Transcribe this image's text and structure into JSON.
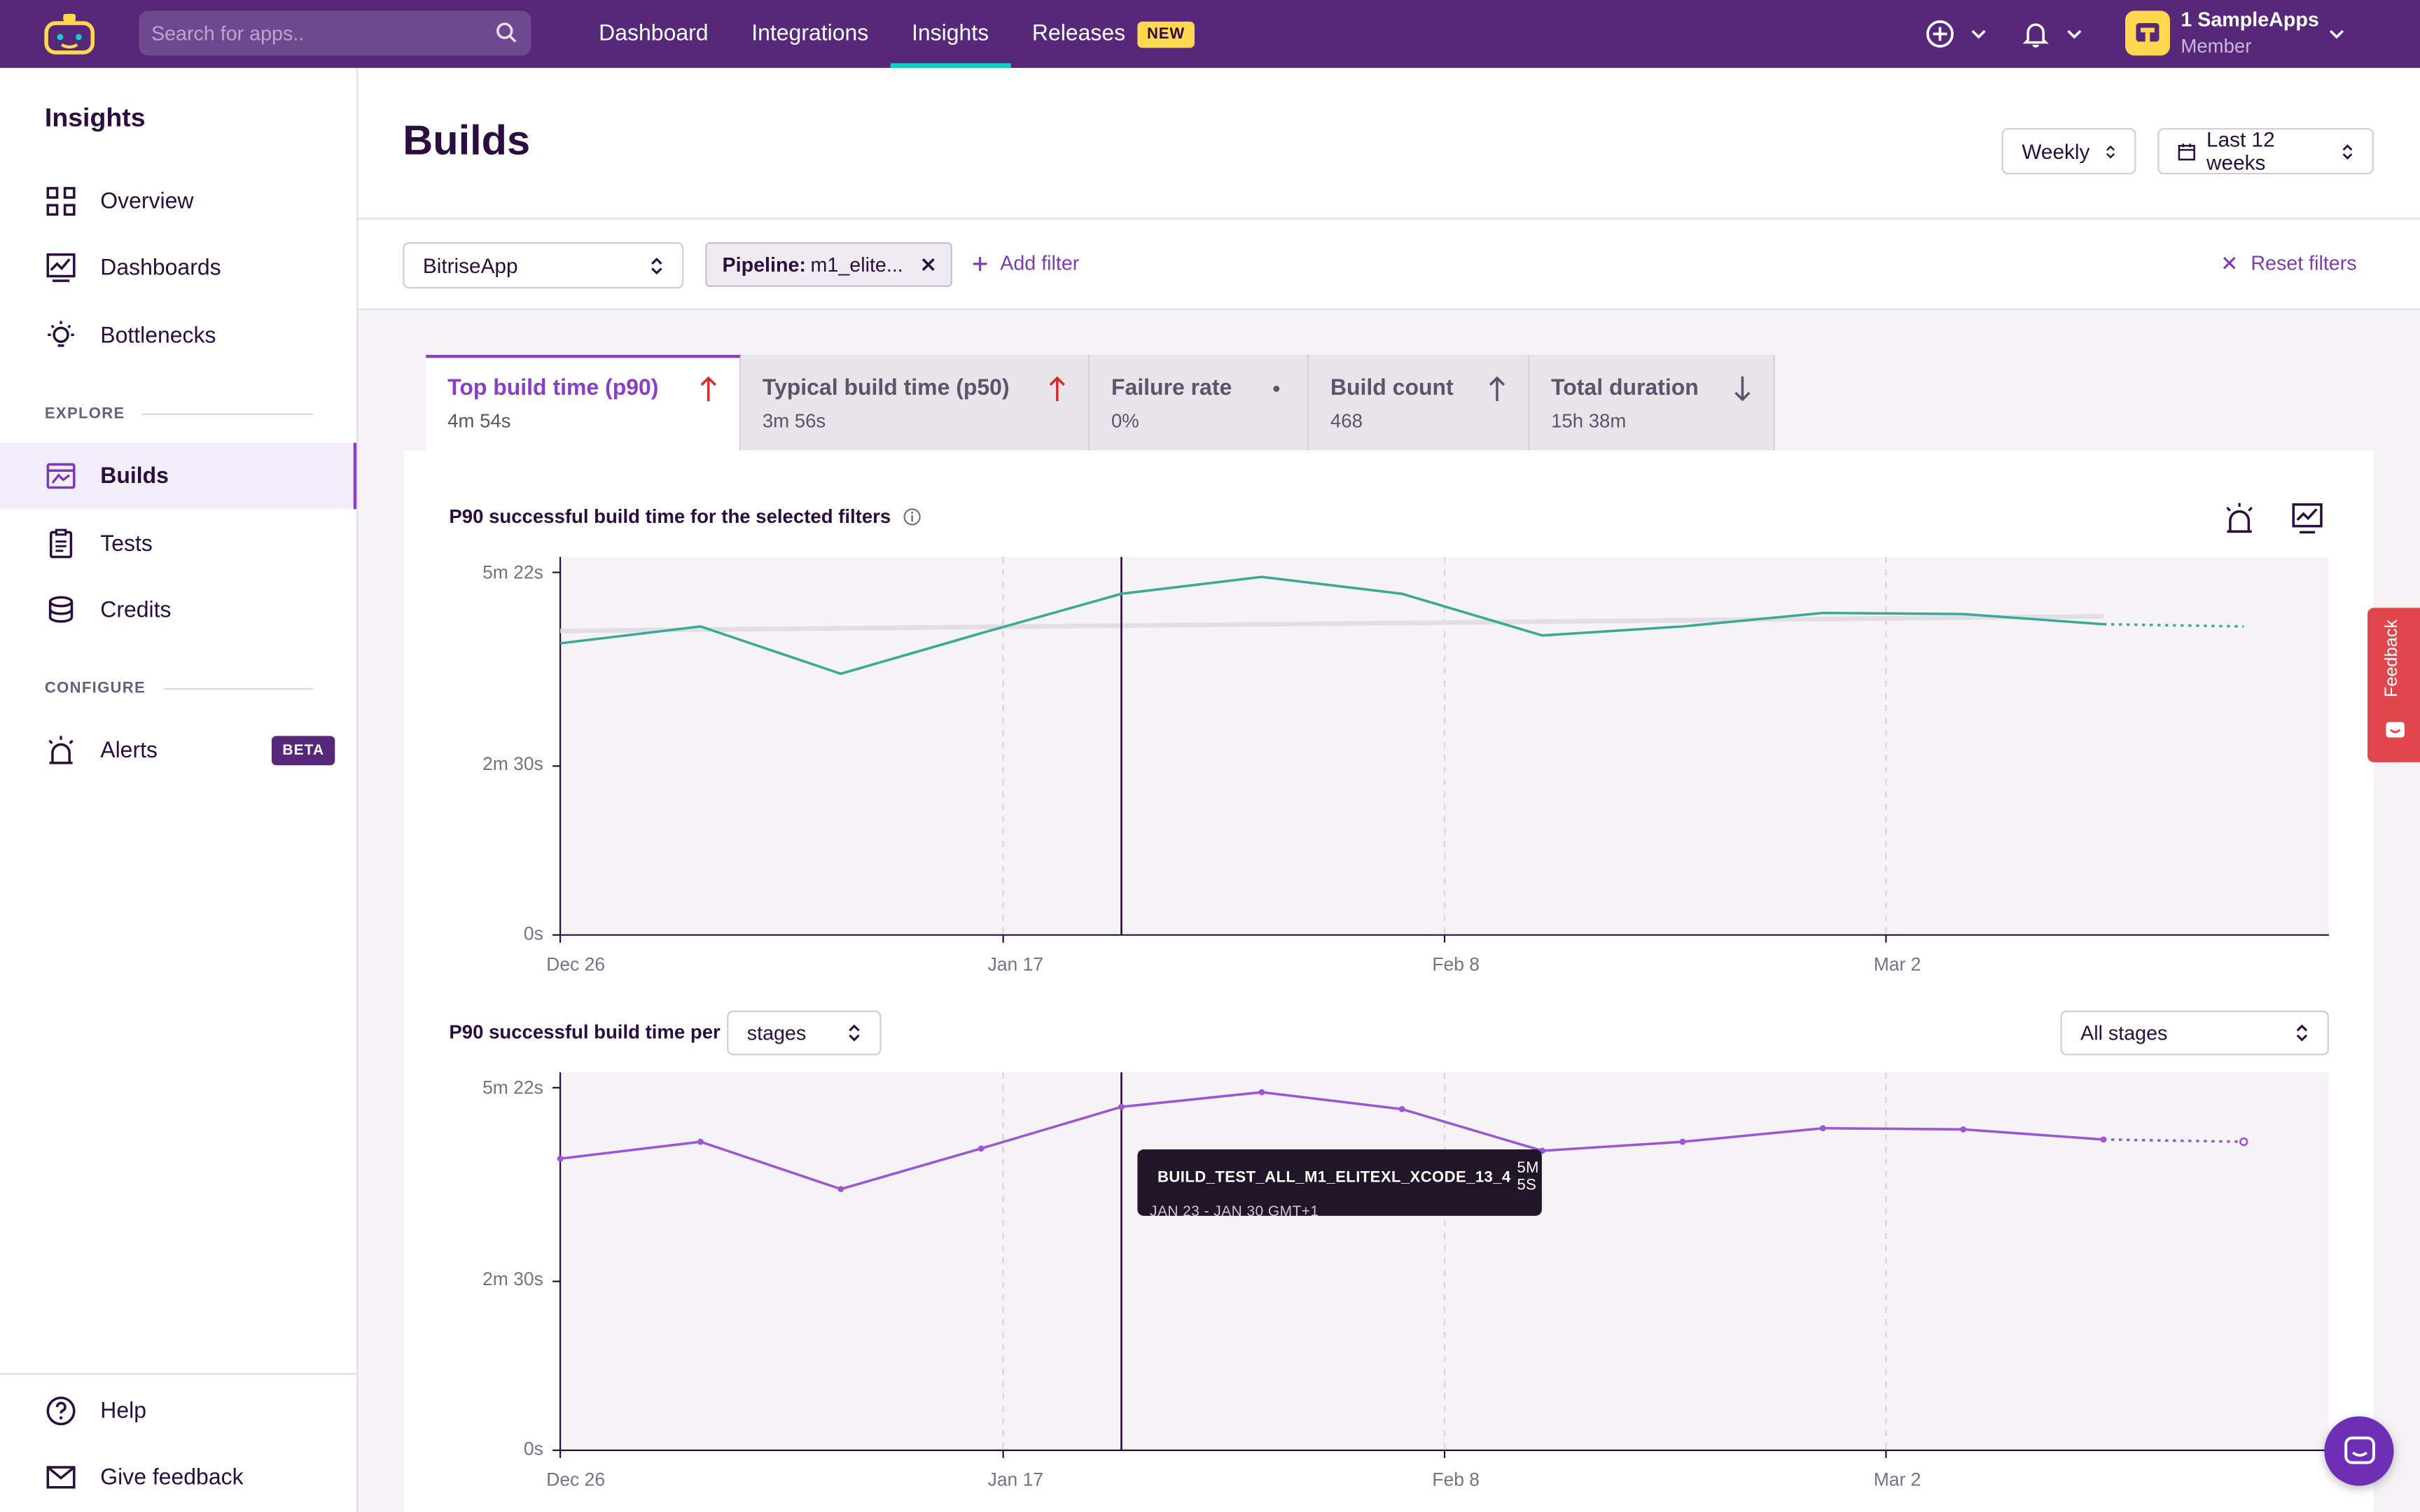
{
  "topbar": {
    "search_placeholder": "Search for apps..",
    "nav": [
      {
        "label": "Dashboard"
      },
      {
        "label": "Integrations"
      },
      {
        "label": "Insights"
      },
      {
        "label": "Releases"
      }
    ],
    "releases_badge": "NEW",
    "active_nav": "Insights",
    "org": {
      "name": "1 SampleApps",
      "role": "Member"
    },
    "icons": [
      "logo-icon",
      "search-icon",
      "add-circle-icon",
      "bell-icon",
      "chevron-down-icon"
    ]
  },
  "sidebar": {
    "title": "Insights",
    "items": [
      {
        "label": "Overview",
        "icon": "grid-icon"
      },
      {
        "label": "Dashboards",
        "icon": "chart-monitor-icon"
      },
      {
        "label": "Bottlenecks",
        "icon": "lightbulb-icon"
      }
    ],
    "explore_label": "EXPLORE",
    "explore_items": [
      {
        "label": "Builds",
        "icon": "builds-icon",
        "active": true
      },
      {
        "label": "Tests",
        "icon": "clipboard-icon"
      },
      {
        "label": "Credits",
        "icon": "coins-icon"
      }
    ],
    "configure_label": "CONFIGURE",
    "configure_items": [
      {
        "label": "Alerts",
        "icon": "siren-icon",
        "badge": "BETA"
      }
    ],
    "footer_items": [
      {
        "label": "Help",
        "icon": "help-circle-icon"
      },
      {
        "label": "Give feedback",
        "icon": "mail-icon"
      }
    ]
  },
  "header": {
    "title": "Builds",
    "interval": "Weekly",
    "range": "Last 12 weeks"
  },
  "filters": {
    "app": "BitriseApp",
    "chip_key": "Pipeline:",
    "chip_value": "m1_elite...",
    "add_filter": "Add filter",
    "reset": "Reset filters"
  },
  "tabs": [
    {
      "label": "Top build time (p90)",
      "value": "4m 54s",
      "trend": "up-bad"
    },
    {
      "label": "Typical build time (p50)",
      "value": "3m 56s",
      "trend": "up-bad"
    },
    {
      "label": "Failure rate",
      "value": "0%",
      "trend": "neutral"
    },
    {
      "label": "Build count",
      "value": "468",
      "trend": "up"
    },
    {
      "label": "Total duration",
      "value": "15h 38m",
      "trend": "down"
    }
  ],
  "chart1": {
    "title": "P90 successful build time for the selected filters"
  },
  "chart2": {
    "title_prefix": "P90 successful build time per",
    "group_by": "stages",
    "stage_filter": "All stages"
  },
  "tooltip": {
    "series": "BUILD_TEST_ALL_M1_ELITEXL_XCODE_13_4",
    "value": "5M 5S",
    "range": "JAN 23 - JAN 30 GMT+1"
  },
  "feedback_tab": "Feedback",
  "colors": {
    "brand": "#57287a",
    "accent": "#8a3ec8",
    "teal": "#3aa996",
    "trend_bad": "#d32f2f"
  },
  "chart_data": [
    {
      "type": "line",
      "title": "P90 successful build time for the selected filters",
      "x": [
        "Dec 26",
        "Jan 2",
        "Jan 9",
        "Jan 16",
        "Jan 23",
        "Jan 30",
        "Feb 6",
        "Feb 13",
        "Feb 20",
        "Feb 27",
        "Mar 6",
        "Mar 13",
        "Mar 20"
      ],
      "x_tick_labels": [
        "Dec 26",
        "Jan 17",
        "Feb 8",
        "Mar 2"
      ],
      "y_tick_labels": [
        "0s",
        "2m 30s",
        "5m 22s"
      ],
      "ylim_seconds": [
        0,
        322
      ],
      "series": [
        {
          "values_seconds": [
            259,
            274,
            232,
            268,
            303,
            318,
            303,
            266,
            274,
            286,
            285,
            276
          ],
          "projected_seconds": 274
        },
        {
          "role": "trend",
          "start_seconds": 270,
          "end_seconds": 283
        }
      ],
      "cursor_x": "Jan 23"
    },
    {
      "type": "line",
      "title": "P90 successful build time per stages",
      "x": [
        "Dec 26",
        "Jan 2",
        "Jan 9",
        "Jan 16",
        "Jan 23",
        "Jan 30",
        "Feb 6",
        "Feb 13",
        "Feb 20",
        "Feb 27",
        "Mar 6",
        "Mar 13",
        "Mar 20"
      ],
      "x_tick_labels": [
        "Dec 26",
        "Jan 17",
        "Feb 8",
        "Mar 2"
      ],
      "y_tick_labels": [
        "0s",
        "2m 30s",
        "5m 22s"
      ],
      "ylim_seconds": [
        0,
        322
      ],
      "series": [
        {
          "values_seconds": [
            259,
            274,
            232,
            268,
            305,
            318,
            303,
            266,
            274,
            286,
            285,
            276
          ],
          "projected_seconds": 274
        }
      ],
      "cursor_x": "Jan 23"
    }
  ]
}
